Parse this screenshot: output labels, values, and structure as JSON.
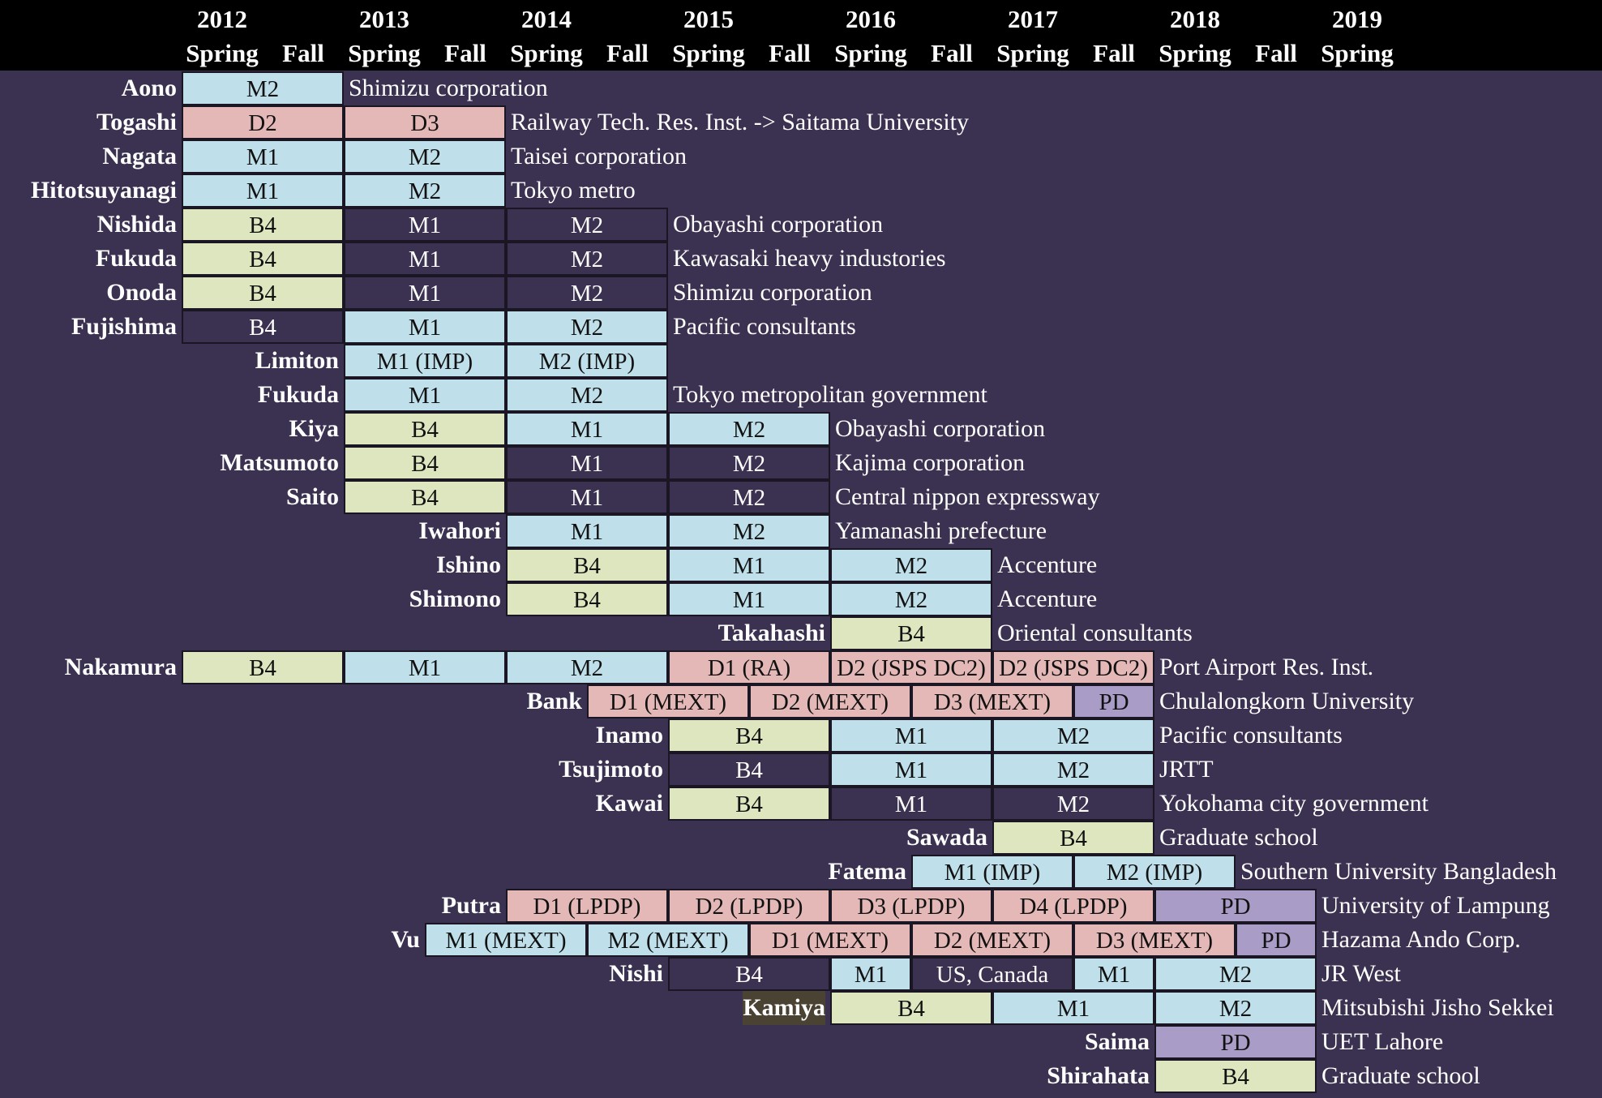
{
  "header": {
    "years": [
      "2012",
      "2013",
      "2014",
      "2015",
      "2016",
      "2017",
      "2018",
      "2019"
    ],
    "season_labels": [
      "Spring",
      "Fall",
      "Spring",
      "Fall",
      "Spring",
      "Fall",
      "Spring",
      "Fall",
      "Spring",
      "Fall",
      "Spring",
      "Fall",
      "Spring",
      "Fall",
      "Spring"
    ]
  },
  "legend_colors": {
    "M": "#bfe0ea",
    "D": "#e5b8b8",
    "B": "#dde6bf",
    "P": "#a99cc6",
    "N": "#3b3150",
    "background": "#3b3150"
  },
  "rows": [
    {
      "name": "Aono",
      "start": 0,
      "cells": [
        {
          "label": "M2",
          "span": 2,
          "color": "M"
        }
      ],
      "dest": "Shimizu corporation"
    },
    {
      "name": "Togashi",
      "start": 0,
      "cells": [
        {
          "label": "D2",
          "span": 2,
          "color": "D"
        },
        {
          "label": "D3",
          "span": 2,
          "color": "D"
        }
      ],
      "dest": "Railway Tech. Res. Inst. -> Saitama University"
    },
    {
      "name": "Nagata",
      "start": 0,
      "cells": [
        {
          "label": "M1",
          "span": 2,
          "color": "M"
        },
        {
          "label": "M2",
          "span": 2,
          "color": "M"
        }
      ],
      "dest": "Taisei corporation"
    },
    {
      "name": "Hitotsuyanagi",
      "start": 0,
      "cells": [
        {
          "label": "M1",
          "span": 2,
          "color": "M"
        },
        {
          "label": "M2",
          "span": 2,
          "color": "M"
        }
      ],
      "dest": "Tokyo metro"
    },
    {
      "name": "Nishida",
      "start": 0,
      "cells": [
        {
          "label": "B4",
          "span": 2,
          "color": "B"
        },
        {
          "label": "M1",
          "span": 2,
          "color": "N"
        },
        {
          "label": "M2",
          "span": 2,
          "color": "N"
        }
      ],
      "dest": "Obayashi corporation"
    },
    {
      "name": "Fukuda",
      "start": 0,
      "cells": [
        {
          "label": "B4",
          "span": 2,
          "color": "B"
        },
        {
          "label": "M1",
          "span": 2,
          "color": "N"
        },
        {
          "label": "M2",
          "span": 2,
          "color": "N"
        }
      ],
      "dest": "Kawasaki heavy industories"
    },
    {
      "name": "Onoda",
      "start": 0,
      "cells": [
        {
          "label": "B4",
          "span": 2,
          "color": "B"
        },
        {
          "label": "M1",
          "span": 2,
          "color": "N"
        },
        {
          "label": "M2",
          "span": 2,
          "color": "N"
        }
      ],
      "dest": "Shimizu corporation"
    },
    {
      "name": "Fujishima",
      "start": 0,
      "cells": [
        {
          "label": "B4",
          "span": 2,
          "color": "N"
        },
        {
          "label": "M1",
          "span": 2,
          "color": "M"
        },
        {
          "label": "M2",
          "span": 2,
          "color": "M"
        }
      ],
      "dest": "Pacific consultants"
    },
    {
      "name": "Limiton",
      "start": 2,
      "cells": [
        {
          "label": "M1 (IMP)",
          "span": 2,
          "color": "M"
        },
        {
          "label": "M2 (IMP)",
          "span": 2,
          "color": "M"
        }
      ],
      "dest": ""
    },
    {
      "name": "Fukuda",
      "start": 2,
      "cells": [
        {
          "label": "M1",
          "span": 2,
          "color": "M"
        },
        {
          "label": "M2",
          "span": 2,
          "color": "M"
        }
      ],
      "dest": "Tokyo metropolitan government"
    },
    {
      "name": "Kiya",
      "start": 2,
      "cells": [
        {
          "label": "B4",
          "span": 2,
          "color": "B"
        },
        {
          "label": "M1",
          "span": 2,
          "color": "M"
        },
        {
          "label": "M2",
          "span": 2,
          "color": "M"
        }
      ],
      "dest": "Obayashi corporation"
    },
    {
      "name": "Matsumoto",
      "start": 2,
      "cells": [
        {
          "label": "B4",
          "span": 2,
          "color": "B"
        },
        {
          "label": "M1",
          "span": 2,
          "color": "N"
        },
        {
          "label": "M2",
          "span": 2,
          "color": "N"
        }
      ],
      "dest": "Kajima corporation"
    },
    {
      "name": "Saito",
      "start": 2,
      "cells": [
        {
          "label": "B4",
          "span": 2,
          "color": "B"
        },
        {
          "label": "M1",
          "span": 2,
          "color": "N"
        },
        {
          "label": "M2",
          "span": 2,
          "color": "N"
        }
      ],
      "dest": "Central nippon expressway"
    },
    {
      "name": "Iwahori",
      "start": 4,
      "cells": [
        {
          "label": "M1",
          "span": 2,
          "color": "M"
        },
        {
          "label": "M2",
          "span": 2,
          "color": "M"
        }
      ],
      "dest": "Yamanashi prefecture"
    },
    {
      "name": "Ishino",
      "start": 4,
      "cells": [
        {
          "label": "B4",
          "span": 2,
          "color": "B"
        },
        {
          "label": "M1",
          "span": 2,
          "color": "M"
        },
        {
          "label": "M2",
          "span": 2,
          "color": "M"
        }
      ],
      "dest": "Accenture"
    },
    {
      "name": "Shimono",
      "start": 4,
      "cells": [
        {
          "label": "B4",
          "span": 2,
          "color": "B"
        },
        {
          "label": "M1",
          "span": 2,
          "color": "M"
        },
        {
          "label": "M2",
          "span": 2,
          "color": "M"
        }
      ],
      "dest": "Accenture"
    },
    {
      "name": "Takahashi",
      "start": 8,
      "cells": [
        {
          "label": "B4",
          "span": 2,
          "color": "B"
        }
      ],
      "dest": "Oriental consultants"
    },
    {
      "name": "Nakamura",
      "start": 0,
      "cells": [
        {
          "label": "B4",
          "span": 2,
          "color": "B"
        },
        {
          "label": "M1",
          "span": 2,
          "color": "M"
        },
        {
          "label": "M2",
          "span": 2,
          "color": "M"
        },
        {
          "label": "D1 (RA)",
          "span": 2,
          "color": "D"
        },
        {
          "label": "D2 (JSPS DC2)",
          "span": 2,
          "color": "D"
        },
        {
          "label": "D2 (JSPS DC2)",
          "span": 2,
          "color": "D"
        }
      ],
      "dest": "Port Airport Res. Inst."
    },
    {
      "name": "Bank",
      "start": 5,
      "cells": [
        {
          "label": "D1 (MEXT)",
          "span": 2,
          "color": "D"
        },
        {
          "label": "D2 (MEXT)",
          "span": 2,
          "color": "D"
        },
        {
          "label": "D3 (MEXT)",
          "span": 2,
          "color": "D"
        },
        {
          "label": "PD",
          "span": 1,
          "color": "P"
        }
      ],
      "dest": "Chulalongkorn University"
    },
    {
      "name": "Inamo",
      "start": 6,
      "cells": [
        {
          "label": "B4",
          "span": 2,
          "color": "B"
        },
        {
          "label": "M1",
          "span": 2,
          "color": "M"
        },
        {
          "label": "M2",
          "span": 2,
          "color": "M"
        }
      ],
      "dest": "Pacific consultants"
    },
    {
      "name": "Tsujimoto",
      "start": 6,
      "cells": [
        {
          "label": "B4",
          "span": 2,
          "color": "N"
        },
        {
          "label": "M1",
          "span": 2,
          "color": "M"
        },
        {
          "label": "M2",
          "span": 2,
          "color": "M"
        }
      ],
      "dest": "JRTT"
    },
    {
      "name": "Kawai",
      "start": 6,
      "cells": [
        {
          "label": "B4",
          "span": 2,
          "color": "B"
        },
        {
          "label": "M1",
          "span": 2,
          "color": "N"
        },
        {
          "label": "M2",
          "span": 2,
          "color": "N"
        }
      ],
      "dest": "Yokohama city government"
    },
    {
      "name": "Sawada",
      "start": 10,
      "cells": [
        {
          "label": "B4",
          "span": 2,
          "color": "B"
        }
      ],
      "dest": "Graduate school"
    },
    {
      "name": "Fatema",
      "start": 9,
      "cells": [
        {
          "label": "M1 (IMP)",
          "span": 2,
          "color": "M"
        },
        {
          "label": "M2 (IMP)",
          "span": 2,
          "color": "M"
        }
      ],
      "dest": "Southern University Bangladesh"
    },
    {
      "name": "Putra",
      "start": 4,
      "cells": [
        {
          "label": "D1 (LPDP)",
          "span": 2,
          "color": "D"
        },
        {
          "label": "D2 (LPDP)",
          "span": 2,
          "color": "D"
        },
        {
          "label": "D3 (LPDP)",
          "span": 2,
          "color": "D"
        },
        {
          "label": "D4 (LPDP)",
          "span": 2,
          "color": "D"
        },
        {
          "label": "PD",
          "span": 2,
          "color": "P"
        }
      ],
      "dest": "University of Lampung"
    },
    {
      "name": "Vu",
      "start": 3,
      "cells": [
        {
          "label": "M1 (MEXT)",
          "span": 2,
          "color": "M"
        },
        {
          "label": "M2 (MEXT)",
          "span": 2,
          "color": "M"
        },
        {
          "label": "D1 (MEXT)",
          "span": 2,
          "color": "D"
        },
        {
          "label": "D2 (MEXT)",
          "span": 2,
          "color": "D"
        },
        {
          "label": "D3 (MEXT)",
          "span": 2,
          "color": "D"
        },
        {
          "label": "PD",
          "span": 1,
          "color": "P"
        }
      ],
      "dest": "Hazama Ando Corp."
    },
    {
      "name": "Nishi",
      "start": 6,
      "cells": [
        {
          "label": "B4",
          "span": 2,
          "color": "N"
        },
        {
          "label": "M1",
          "span": 1,
          "color": "M"
        },
        {
          "label": "US, Canada",
          "span": 2,
          "color": "N"
        },
        {
          "label": "M1",
          "span": 1,
          "color": "M"
        },
        {
          "label": "M2",
          "span": 2,
          "color": "M"
        }
      ],
      "dest": "JR West"
    },
    {
      "name": "Kamiya",
      "start": 8,
      "highlight": true,
      "cells": [
        {
          "label": "B4",
          "span": 2,
          "color": "B"
        },
        {
          "label": "M1",
          "span": 2,
          "color": "M"
        },
        {
          "label": "M2",
          "span": 2,
          "color": "M"
        }
      ],
      "dest": "Mitsubishi Jisho Sekkei"
    },
    {
      "name": "Saima",
      "start": 12,
      "cells": [
        {
          "label": "PD",
          "span": 2,
          "color": "P"
        }
      ],
      "dest": "UET Lahore"
    },
    {
      "name": "Shirahata",
      "start": 12,
      "cells": [
        {
          "label": "B4",
          "span": 2,
          "color": "B"
        }
      ],
      "dest": "Graduate school"
    }
  ]
}
